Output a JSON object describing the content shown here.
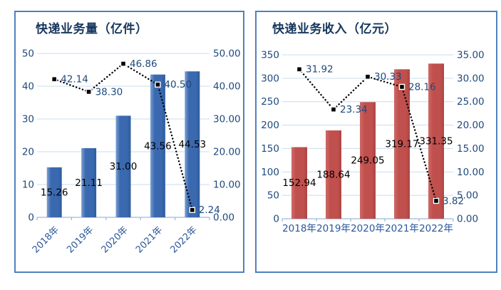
{
  "page": {
    "background": "#ffffff"
  },
  "chart_data": [
    {
      "id": "express-volume",
      "type": "bar+line",
      "title": "快递业务量（亿件）",
      "categories": [
        "2018年",
        "2019年",
        "2020年",
        "2021年",
        "2022年"
      ],
      "bars": {
        "values": [
          15.26,
          21.11,
          31.0,
          43.56,
          44.53
        ],
        "labels": [
          "15.26",
          "21.11",
          "31.00",
          "43.56",
          "44.53"
        ],
        "axis": "left"
      },
      "line": {
        "values": [
          42.14,
          38.3,
          46.86,
          40.5,
          2.24
        ],
        "labels": [
          "42.14",
          "38.30",
          "46.86",
          "40.50",
          "2.24"
        ],
        "axis": "right"
      },
      "left_axis": {
        "min": 0,
        "max": 50,
        "step": 10,
        "decimals": 0
      },
      "right_axis": {
        "min": 0,
        "max": 50,
        "step": 10,
        "decimals": 2
      },
      "x_labels_rotated": true,
      "grid": true,
      "legend": "none",
      "colors": {
        "bar": "#3A69B0",
        "bar_light": "#7DA0D3",
        "bar_dark": "#2F5C9E",
        "line": "#000000",
        "marker_fill": "#000000",
        "marker_border": "#ffffff",
        "grid": "#C9DCF0",
        "axis_line": "#9DBBDD",
        "tick_text": "#1F497D",
        "category_text": "#2A5699",
        "bar_label_text": "#000000",
        "line_label_text": "#1F497D",
        "title_text": "#17375E",
        "panel_border": "#4F81BD"
      }
    },
    {
      "id": "express-revenue",
      "type": "bar+line",
      "title": "快递业务收入（亿元）",
      "categories": [
        "2018年",
        "2019年",
        "2020年",
        "2021年",
        "2022年"
      ],
      "bars": {
        "values": [
          152.94,
          188.64,
          249.05,
          319.17,
          331.35
        ],
        "labels": [
          "152.94",
          "188.64",
          "249.05",
          "319.17",
          "331.35"
        ],
        "axis": "left"
      },
      "line": {
        "values": [
          31.92,
          23.34,
          30.33,
          28.16,
          3.82
        ],
        "labels": [
          "31.92",
          "23.34",
          "30.33",
          "28.16",
          "3.82"
        ],
        "axis": "right"
      },
      "left_axis": {
        "min": 0,
        "max": 350,
        "step": 50,
        "decimals": 0
      },
      "right_axis": {
        "min": 0,
        "max": 35,
        "step": 5,
        "decimals": 2
      },
      "x_labels_rotated": false,
      "grid": true,
      "legend": "none",
      "colors": {
        "bar": "#C0504D",
        "bar_light": "#CE6B68",
        "bar_dark": "#AC4442",
        "line": "#000000",
        "marker_fill": "#000000",
        "marker_border": "#ffffff",
        "grid": "#C9DCF0",
        "axis_line": "#9DBBDD",
        "tick_text": "#1F497D",
        "category_text": "#2A5699",
        "bar_label_text": "#000000",
        "line_label_text": "#1F497D",
        "title_text": "#17375E",
        "panel_border": "#4F81BD"
      }
    }
  ]
}
